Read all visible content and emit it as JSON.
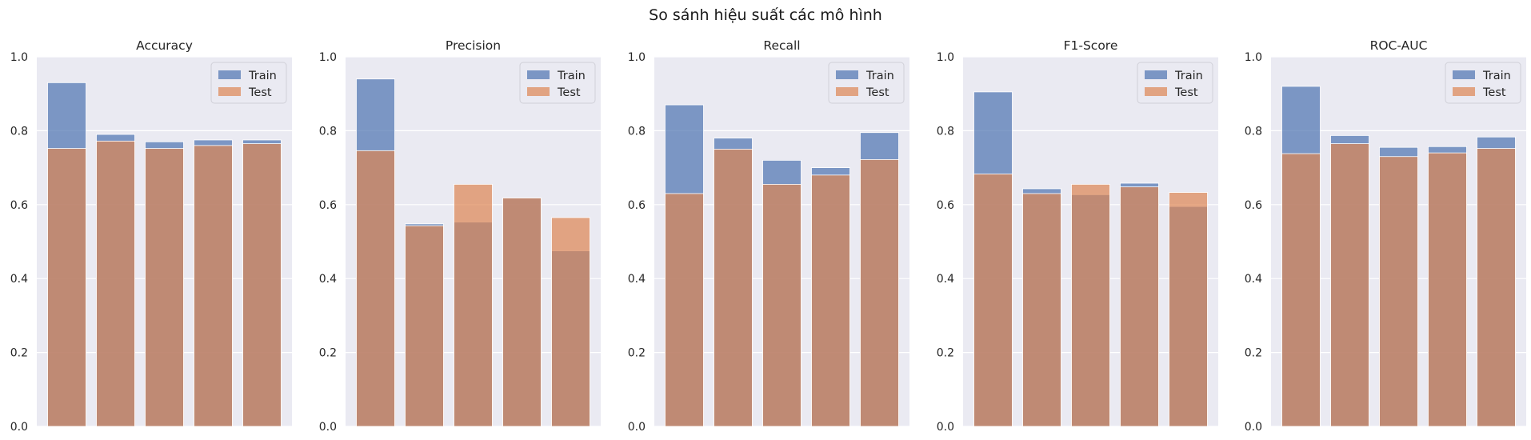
{
  "figure": {
    "title": "So sánh hiệu suất các mô hình"
  },
  "chart_data": [
    {
      "type": "bar",
      "title": "Accuracy",
      "xlabel": "",
      "ylabel": "",
      "ylim": [
        0,
        1
      ],
      "yticks": [
        "0.0",
        "0.2",
        "0.4",
        "0.6",
        "0.8",
        "1.0"
      ],
      "categories": [
        "",
        "",
        "",
        "",
        ""
      ],
      "legend": "top-right",
      "series": [
        {
          "name": "Train",
          "color": "#4c72b0",
          "values": [
            0.93,
            0.79,
            0.77,
            0.775,
            0.775
          ]
        },
        {
          "name": "Test",
          "color": "#dd8452",
          "values": [
            0.752,
            0.772,
            0.752,
            0.76,
            0.765
          ]
        }
      ]
    },
    {
      "type": "bar",
      "title": "Precision",
      "xlabel": "",
      "ylabel": "",
      "ylim": [
        0,
        1
      ],
      "yticks": [
        "0.0",
        "0.2",
        "0.4",
        "0.6",
        "0.8",
        "1.0"
      ],
      "categories": [
        "",
        "",
        "",
        "",
        ""
      ],
      "legend": "top-right",
      "series": [
        {
          "name": "Train",
          "color": "#4c72b0",
          "values": [
            0.94,
            0.548,
            0.553,
            0.618,
            0.475
          ]
        },
        {
          "name": "Test",
          "color": "#dd8452",
          "values": [
            0.746,
            0.543,
            0.655,
            0.618,
            0.565
          ]
        }
      ]
    },
    {
      "type": "bar",
      "title": "Recall",
      "xlabel": "",
      "ylabel": "",
      "ylim": [
        0,
        1
      ],
      "yticks": [
        "0.0",
        "0.2",
        "0.4",
        "0.6",
        "0.8",
        "1.0"
      ],
      "categories": [
        "",
        "",
        "",
        "",
        ""
      ],
      "legend": "top-right",
      "series": [
        {
          "name": "Train",
          "color": "#4c72b0",
          "values": [
            0.87,
            0.78,
            0.72,
            0.7,
            0.795
          ]
        },
        {
          "name": "Test",
          "color": "#dd8452",
          "values": [
            0.63,
            0.75,
            0.655,
            0.68,
            0.722
          ]
        }
      ]
    },
    {
      "type": "bar",
      "title": "F1-Score",
      "xlabel": "",
      "ylabel": "",
      "ylim": [
        0,
        1
      ],
      "yticks": [
        "0.0",
        "0.2",
        "0.4",
        "0.6",
        "0.8",
        "1.0"
      ],
      "categories": [
        "",
        "",
        "",
        "",
        ""
      ],
      "legend": "top-right",
      "series": [
        {
          "name": "Train",
          "color": "#4c72b0",
          "values": [
            0.905,
            0.643,
            0.627,
            0.658,
            0.595
          ]
        },
        {
          "name": "Test",
          "color": "#dd8452",
          "values": [
            0.683,
            0.63,
            0.655,
            0.648,
            0.633
          ]
        }
      ]
    },
    {
      "type": "bar",
      "title": "ROC-AUC",
      "xlabel": "",
      "ylabel": "",
      "ylim": [
        0,
        1
      ],
      "yticks": [
        "0.0",
        "0.2",
        "0.4",
        "0.6",
        "0.8",
        "1.0"
      ],
      "categories": [
        "",
        "",
        "",
        "",
        ""
      ],
      "legend": "top-right",
      "series": [
        {
          "name": "Train",
          "color": "#4c72b0",
          "values": [
            0.92,
            0.787,
            0.755,
            0.757,
            0.783
          ]
        },
        {
          "name": "Test",
          "color": "#dd8452",
          "values": [
            0.738,
            0.765,
            0.73,
            0.74,
            0.752
          ]
        }
      ]
    }
  ]
}
